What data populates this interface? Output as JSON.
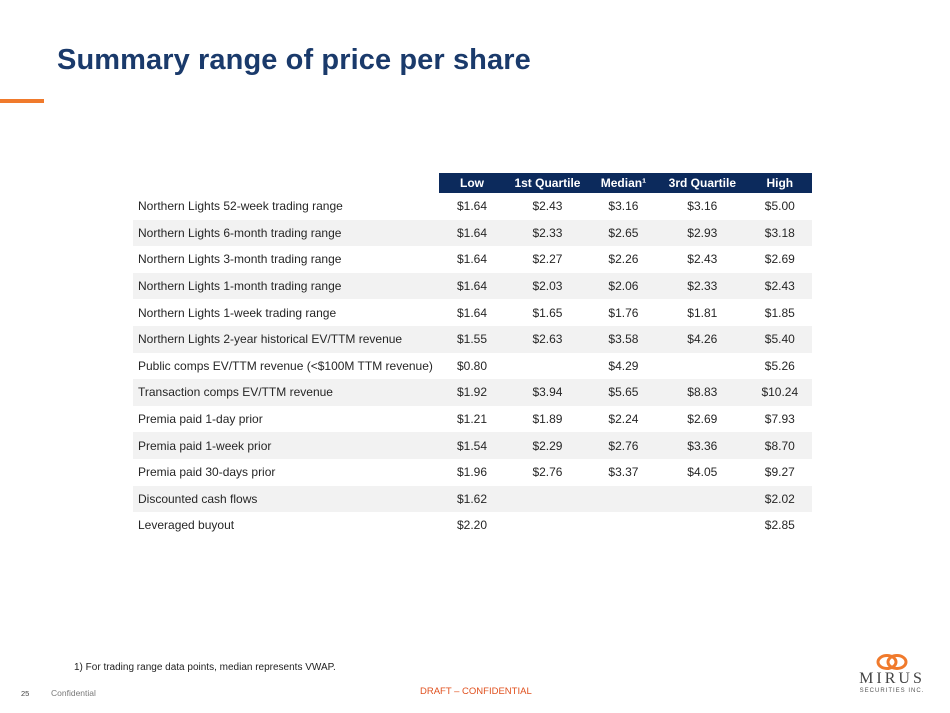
{
  "page": {
    "title": "Summary range of price per share",
    "footnote": "1) For trading range data points, median represents VWAP.",
    "page_number": "25",
    "confidential": "Confidential",
    "draft": "DRAFT – CONFIDENTIAL"
  },
  "logo": {
    "name": "MIRUS",
    "subtitle": "SECURITIES INC.",
    "icon": "mirus-logo-icon",
    "color": "#f07a2c"
  },
  "colors": {
    "title": "#1a3a6b",
    "header_bg": "#0c2a5c",
    "accent": "#f07a2c",
    "draft": "#e0501e",
    "row_alt": "#f2f2f2"
  },
  "table": {
    "headers": [
      "Low",
      "1st Quartile",
      "Median¹",
      "3rd Quartile",
      "High"
    ],
    "rows": [
      {
        "label": "Northern Lights 52-week trading range",
        "values": [
          "$1.64",
          "$2.43",
          "$3.16",
          "$3.16",
          "$5.00"
        ]
      },
      {
        "label": "Northern Lights 6-month trading range",
        "values": [
          "$1.64",
          "$2.33",
          "$2.65",
          "$2.93",
          "$3.18"
        ]
      },
      {
        "label": "Northern Lights 3-month trading range",
        "values": [
          "$1.64",
          "$2.27",
          "$2.26",
          "$2.43",
          "$2.69"
        ]
      },
      {
        "label": "Northern Lights 1-month trading range",
        "values": [
          "$1.64",
          "$2.03",
          "$2.06",
          "$2.33",
          "$2.43"
        ]
      },
      {
        "label": "Northern Lights 1-week trading range",
        "values": [
          "$1.64",
          "$1.65",
          "$1.76",
          "$1.81",
          "$1.85"
        ]
      },
      {
        "label": "Northern Lights 2-year historical EV/TTM revenue",
        "values": [
          "$1.55",
          "$2.63",
          "$3.58",
          "$4.26",
          "$5.40"
        ]
      },
      {
        "label": "Public comps EV/TTM revenue (<$100M TTM revenue)",
        "values": [
          "$0.80",
          "",
          "$4.29",
          "",
          "$5.26"
        ]
      },
      {
        "label": "Transaction comps EV/TTM revenue",
        "values": [
          "$1.92",
          "$3.94",
          "$5.65",
          "$8.83",
          "$10.24"
        ]
      },
      {
        "label": "Premia paid 1-day prior",
        "values": [
          "$1.21",
          "$1.89",
          "$2.24",
          "$2.69",
          "$7.93"
        ]
      },
      {
        "label": "Premia paid 1-week prior",
        "values": [
          "$1.54",
          "$2.29",
          "$2.76",
          "$3.36",
          "$8.70"
        ]
      },
      {
        "label": "Premia paid 30-days prior",
        "values": [
          "$1.96",
          "$2.76",
          "$3.37",
          "$4.05",
          "$9.27"
        ]
      },
      {
        "label": "Discounted cash flows",
        "values": [
          "$1.62",
          "",
          "",
          "",
          "$2.02"
        ]
      },
      {
        "label": "Leveraged buyout",
        "values": [
          "$2.20",
          "",
          "",
          "",
          "$2.85"
        ]
      }
    ]
  }
}
